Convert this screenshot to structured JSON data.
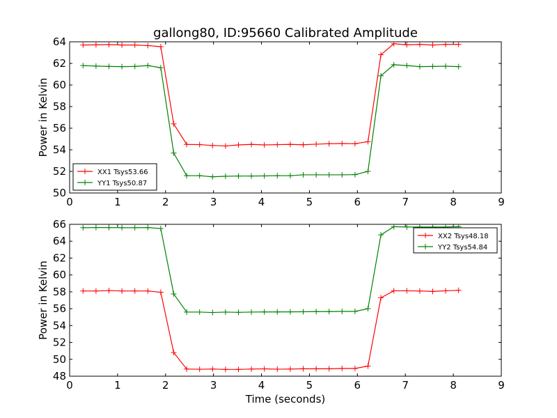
{
  "title": "gallong80, ID:95660 Calibrated Amplitude",
  "colors": {
    "xx": "#ff0000",
    "yy": "#008000",
    "axis": "#000000",
    "background": "#ffffff"
  },
  "chart_data": [
    {
      "type": "line",
      "title": "gallong80, ID:95660 Calibrated Amplitude",
      "xlabel": "",
      "ylabel": "Power in Kelvin",
      "xlim": [
        0,
        9
      ],
      "ylim": [
        50,
        64
      ],
      "xticks": [
        "0",
        "1",
        "2",
        "3",
        "4",
        "5",
        "6",
        "7",
        "8",
        "9"
      ],
      "yticks": [
        "50",
        "52",
        "54",
        "56",
        "58",
        "60",
        "62",
        "64"
      ],
      "grid": false,
      "legend": "lower-left",
      "x": [
        0.28,
        0.55,
        0.82,
        1.09,
        1.36,
        1.63,
        1.9,
        2.17,
        2.44,
        2.71,
        2.98,
        3.25,
        3.52,
        3.79,
        4.06,
        4.33,
        4.6,
        4.87,
        5.14,
        5.41,
        5.68,
        5.95,
        6.22,
        6.49,
        6.76,
        7.03,
        7.3,
        7.57,
        7.84,
        8.11
      ],
      "series": [
        {
          "name": "XX1 Tsys53.66",
          "color": "#ff0000",
          "values": [
            63.7,
            63.72,
            63.74,
            63.7,
            63.7,
            63.65,
            63.55,
            56.4,
            54.5,
            54.48,
            54.4,
            54.35,
            54.45,
            54.5,
            54.45,
            54.48,
            54.5,
            54.47,
            54.52,
            54.56,
            54.58,
            54.56,
            54.75,
            62.8,
            63.82,
            63.72,
            63.76,
            63.7,
            63.76,
            63.76
          ]
        },
        {
          "name": "YY1 Tsys50.87",
          "color": "#008000",
          "values": [
            61.8,
            61.75,
            61.72,
            61.7,
            61.72,
            61.8,
            61.6,
            53.7,
            51.6,
            51.6,
            51.5,
            51.55,
            51.57,
            51.57,
            51.58,
            51.6,
            51.6,
            51.68,
            51.68,
            51.68,
            51.68,
            51.7,
            52.0,
            60.85,
            61.88,
            61.8,
            61.7,
            61.72,
            61.74,
            61.7
          ]
        }
      ]
    },
    {
      "type": "line",
      "title": "",
      "xlabel": "Time (seconds)",
      "ylabel": "Power in Kelvin",
      "xlim": [
        0,
        9
      ],
      "ylim": [
        48,
        66
      ],
      "xticks": [
        "0",
        "1",
        "2",
        "3",
        "4",
        "5",
        "6",
        "7",
        "8",
        "9"
      ],
      "yticks": [
        "48",
        "50",
        "52",
        "54",
        "56",
        "58",
        "60",
        "62",
        "64",
        "66"
      ],
      "grid": false,
      "legend": "top-right",
      "x": [
        0.28,
        0.55,
        0.82,
        1.09,
        1.36,
        1.63,
        1.9,
        2.17,
        2.44,
        2.71,
        2.98,
        3.25,
        3.52,
        3.79,
        4.06,
        4.33,
        4.6,
        4.87,
        5.14,
        5.41,
        5.68,
        5.95,
        6.22,
        6.49,
        6.76,
        7.03,
        7.3,
        7.57,
        7.84,
        8.11
      ],
      "series": [
        {
          "name": "XX2 Tsys48.18",
          "color": "#ff0000",
          "values": [
            58.1,
            58.1,
            58.15,
            58.1,
            58.1,
            58.1,
            57.95,
            50.8,
            48.85,
            48.82,
            48.85,
            48.8,
            48.8,
            48.85,
            48.87,
            48.83,
            48.85,
            48.88,
            48.88,
            48.88,
            48.92,
            48.92,
            49.2,
            57.3,
            58.12,
            58.12,
            58.1,
            58.05,
            58.12,
            58.18
          ]
        },
        {
          "name": "YY2 Tsys54.84",
          "color": "#008000",
          "values": [
            65.6,
            65.62,
            65.62,
            65.6,
            65.6,
            65.62,
            65.5,
            57.75,
            55.6,
            55.6,
            55.55,
            55.6,
            55.57,
            55.6,
            55.62,
            55.62,
            55.63,
            55.64,
            55.66,
            55.66,
            55.68,
            55.68,
            56.0,
            64.75,
            65.72,
            65.68,
            65.68,
            65.68,
            65.68,
            65.72
          ]
        }
      ]
    }
  ]
}
